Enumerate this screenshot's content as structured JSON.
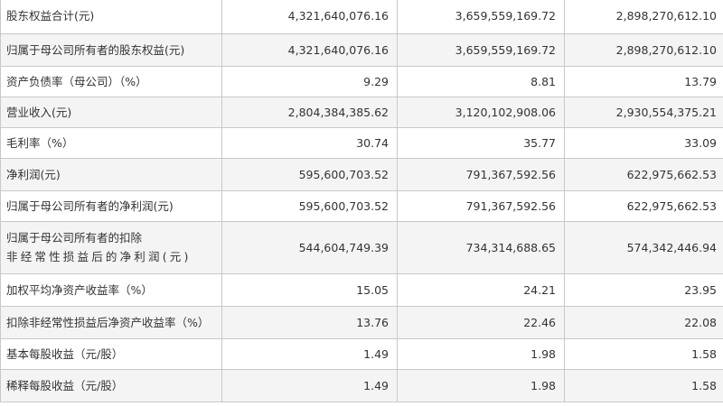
{
  "rows": [
    {
      "label": "股东权益合计(元)",
      "v1": "4,321,640,076.16",
      "v2": "3,659,559,169.72",
      "v3": "2,898,270,612.10"
    },
    {
      "label": "归属于母公司所有者的股东权益(元)",
      "v1": "4,321,640,076.16",
      "v2": "3,659,559,169.72",
      "v3": "2,898,270,612.10"
    },
    {
      "label": "资产负债率（母公司）（%）",
      "v1": "9.29",
      "v2": "8.81",
      "v3": "13.79"
    },
    {
      "label": "营业收入(元)",
      "v1": "2,804,384,385.62",
      "v2": "3,120,102,908.06",
      "v3": "2,930,554,375.21"
    },
    {
      "label": "毛利率（%）",
      "v1": "30.74",
      "v2": "35.77",
      "v3": "33.09"
    },
    {
      "label": "净利润(元)",
      "v1": "595,600,703.52",
      "v2": "791,367,592.56",
      "v3": "622,975,662.53"
    },
    {
      "label": "归属于母公司所有者的净利润(元)",
      "v1": "595,600,703.52",
      "v2": "791,367,592.56",
      "v3": "622,975,662.53"
    },
    {
      "label_line1": "归属于母公司所有者的扣除",
      "label_line2": "非经常性损益后的净利润(元)",
      "v1": "544,604,749.39",
      "v2": "734,314,688.65",
      "v3": "574,342,446.94"
    },
    {
      "label": "加权平均净资产收益率（%）",
      "v1": "15.05",
      "v2": "24.21",
      "v3": "23.95"
    },
    {
      "label": "扣除非经常性损益后净资产收益率（%）",
      "v1": "13.76",
      "v2": "22.46",
      "v3": "22.08"
    },
    {
      "label": "基本每股收益（元/股）",
      "v1": "1.49",
      "v2": "1.98",
      "v3": "1.58"
    },
    {
      "label": "稀释每股收益（元/股）",
      "v1": "1.49",
      "v2": "1.98",
      "v3": "1.58"
    }
  ]
}
